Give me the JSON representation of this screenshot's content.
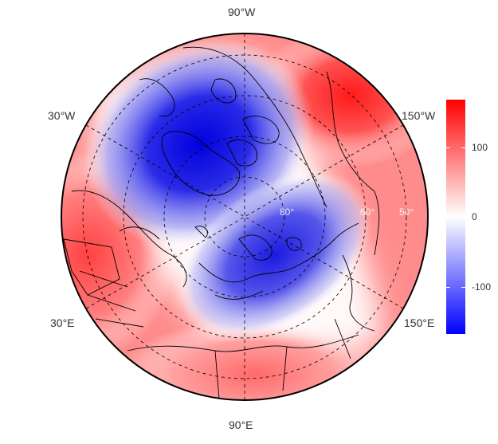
{
  "map": {
    "projection": "polar stereographic, north pole",
    "longitude_labels": {
      "top": "90°W",
      "bottom": "90°E",
      "upper_left": "30°W",
      "lower_left": "30°E",
      "upper_right": "150°W",
      "lower_right": "150°E"
    },
    "latitude_labels": [
      "80°",
      "60°",
      "50°"
    ]
  },
  "colorbar": {
    "ticks": [
      "100",
      "0",
      "-100"
    ],
    "colors": {
      "high": "#ff0000",
      "mid": "#ffffff",
      "low": "#0000ff"
    }
  }
}
